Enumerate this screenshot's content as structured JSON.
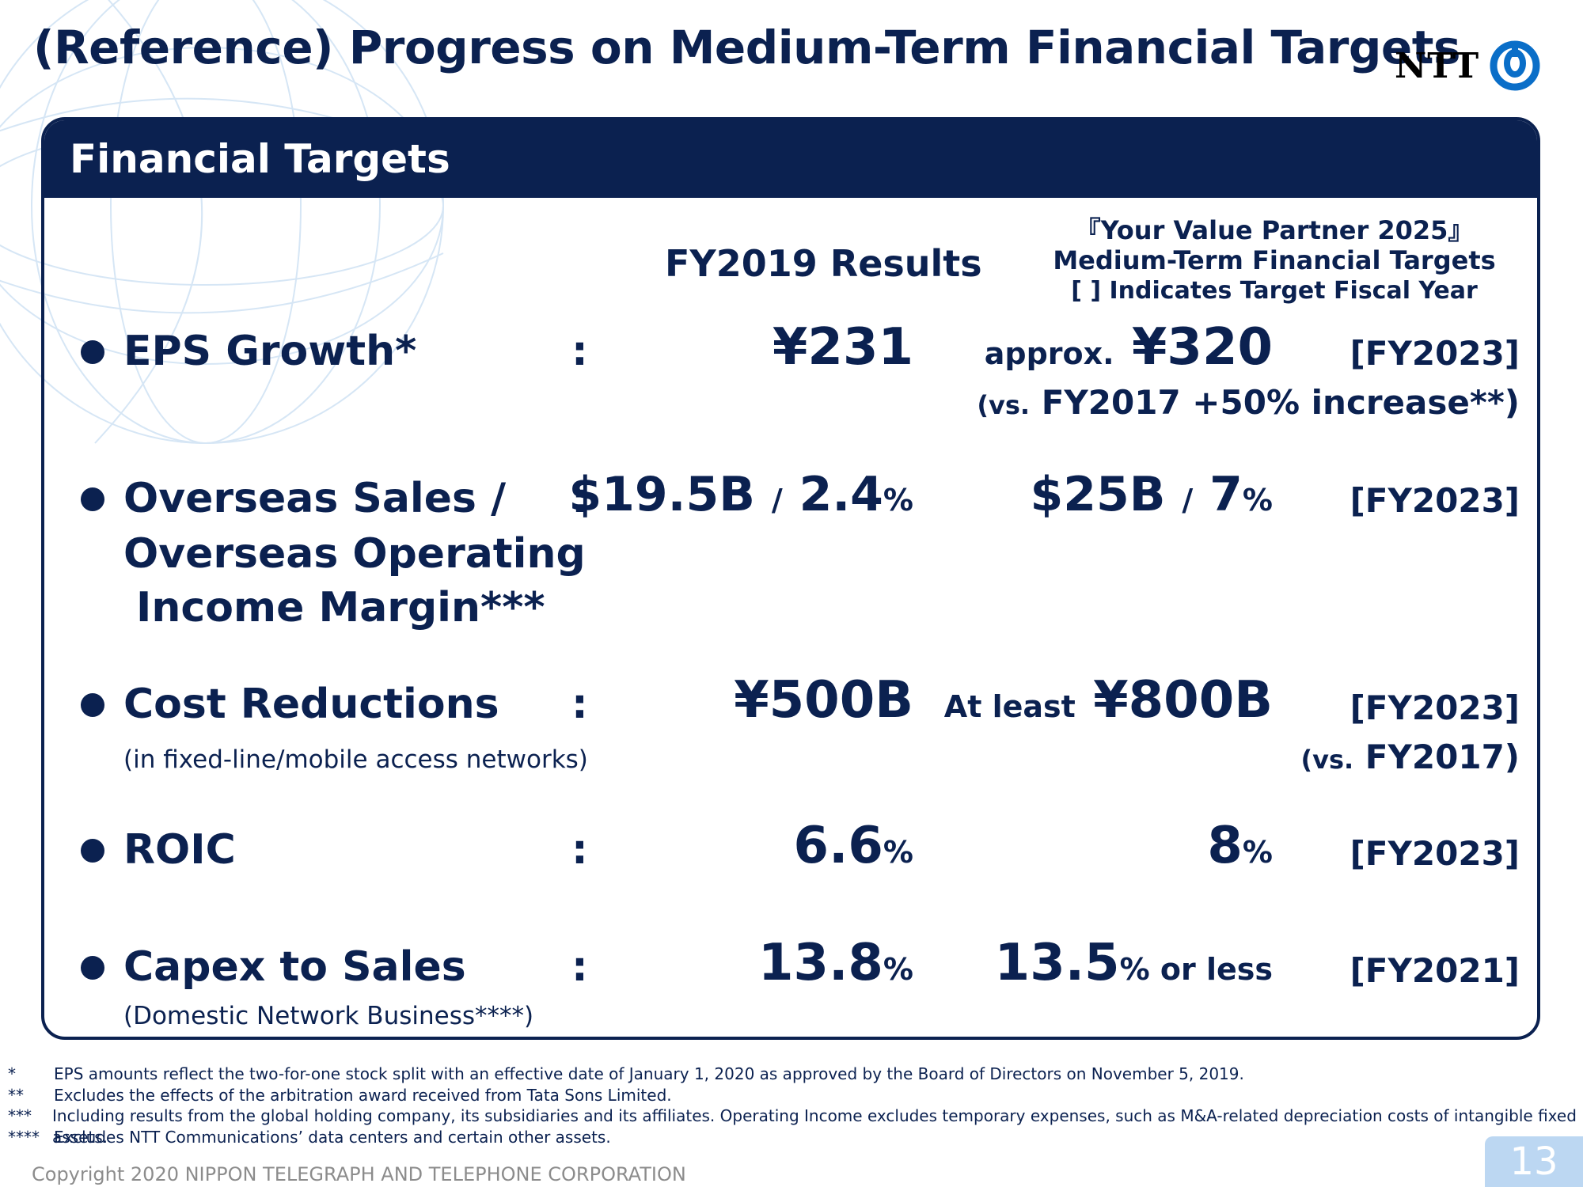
{
  "title": "(Reference) Progress on Medium-Term Financial Targets",
  "logo": {
    "text": "NTT",
    "mark": "ntt-ring-logo"
  },
  "panel": {
    "header": "Financial Targets",
    "col_results": "FY2019 Results",
    "col_target_line1": "『Your Value Partner 2025』",
    "col_target_line2": "Medium-Term Financial Targets",
    "col_target_line3": "[ ] Indicates Target Fiscal Year",
    "colon": ":"
  },
  "rows": {
    "eps": {
      "label": "EPS Growth*",
      "result": "¥231",
      "target_prefix": "approx.",
      "target": "¥320",
      "fy": "[FY2023]",
      "note_prefix": "(vs.",
      "note": "FY2017 +50% increase**)"
    },
    "overseas": {
      "label_line1": "Overseas Sales /",
      "label_line2": "Overseas Operating",
      "label_line3": "Income Margin***",
      "result_a": "$19.5B",
      "result_sep": "/",
      "result_b": "2.4",
      "result_b_unit": "%",
      "target_a": "$25B",
      "target_sep": "/",
      "target_b": "7",
      "target_b_unit": "%",
      "fy": "[FY2023]"
    },
    "cost": {
      "label": "Cost Reductions",
      "sublabel": "(in fixed-line/mobile access networks)",
      "result": "¥500B",
      "target_prefix": "At least",
      "target": "¥800B",
      "fy": "[FY2023]",
      "note_prefix": "(vs.",
      "note": "FY2017)"
    },
    "roic": {
      "label": "ROIC",
      "result": "6.6",
      "result_unit": "%",
      "target": "8",
      "target_unit": "%",
      "fy": "[FY2023]"
    },
    "capex": {
      "label": "Capex to Sales",
      "sublabel": "(Domestic Network Business****)",
      "result": "13.8",
      "result_unit": "%",
      "target": "13.5",
      "target_unit": "% or less",
      "fy": "[FY2021]"
    }
  },
  "footnotes": [
    {
      "mark": "*",
      "text": "EPS amounts reflect the two-for-one stock split with an effective date of January 1, 2020 as approved by the Board of Directors on November 5, 2019."
    },
    {
      "mark": "**",
      "text": "Excludes the effects of the arbitration award received from Tata Sons Limited."
    },
    {
      "mark": "***",
      "text": "Including results from the global holding company, its subsidiaries and its affiliates. Operating Income excludes temporary expenses, such as M&A-related depreciation costs of intangible fixed assets."
    },
    {
      "mark": "****",
      "text": "Excludes NTT Communications’ data centers and certain other assets."
    }
  ],
  "copyright": "Copyright 2020 NIPPON TELEGRAPH AND TELEPHONE CORPORATION",
  "page_number": "13",
  "colors": {
    "navy": "#0b2150",
    "ntt_blue": "#0a6ec8",
    "page_tab": "#bcd7f2"
  }
}
